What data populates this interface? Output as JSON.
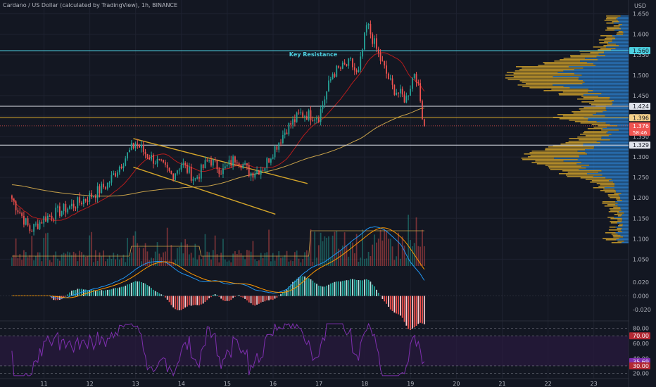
{
  "colors": {
    "background": "#131722",
    "up": "#26a69a",
    "down": "#ef5350",
    "resistance_line": "#4dd0e1",
    "level_line": "#e0e3eb",
    "gold_line": "#d4a52a",
    "ma_fast": "#b71c1c",
    "ma_slow": "#c8a24a",
    "vp_blue": "#2b79c2",
    "vp_gold": "#c79a2b",
    "macd_line": "#2196f3",
    "signal_line": "#ff9800",
    "rsi_line": "#7e2fae",
    "rsi_band": "#2a1a3e",
    "axis_text": "#b2b5be"
  },
  "chart_data": {
    "type": "candlestick",
    "title": "Cardano / US Dollar (calculated by TradingView), 1h, BINANCE",
    "currency": "USD",
    "x_ticks": [
      "11",
      "12",
      "13",
      "14",
      "15",
      "16",
      "17",
      "18",
      "19",
      "20",
      "21",
      "22",
      "23"
    ],
    "price_ticks": [
      "1.650",
      "1.600",
      "1.550",
      "1.500",
      "1.450",
      "1.400",
      "1.350",
      "1.300",
      "1.250",
      "1.200",
      "1.150",
      "1.100",
      "1.050"
    ],
    "price_range": [
      1.03,
      1.67
    ],
    "anchors": [
      [
        "10.3",
        1.198
      ],
      [
        "10.7",
        1.12
      ],
      [
        "11.0",
        1.15
      ],
      [
        "11.4",
        1.17
      ],
      [
        "11.7",
        1.185
      ],
      [
        "12.1",
        1.21
      ],
      [
        "12.4",
        1.235
      ],
      [
        "12.6",
        1.27
      ],
      [
        "13.0",
        1.335
      ],
      [
        "13.2",
        1.31
      ],
      [
        "13.5",
        1.285
      ],
      [
        "13.8",
        1.255
      ],
      [
        "14.0",
        1.285
      ],
      [
        "14.3",
        1.245
      ],
      [
        "14.6",
        1.295
      ],
      [
        "14.9",
        1.265
      ],
      [
        "15.2",
        1.3
      ],
      [
        "15.5",
        1.26
      ],
      [
        "15.8",
        1.275
      ],
      [
        "16.0",
        1.315
      ],
      [
        "16.3",
        1.37
      ],
      [
        "16.6",
        1.405
      ],
      [
        "17.0",
        1.4
      ],
      [
        "17.3",
        1.505
      ],
      [
        "17.7",
        1.53
      ],
      [
        "17.85",
        1.495
      ],
      [
        "18.05",
        1.625
      ],
      [
        "18.3",
        1.55
      ],
      [
        "18.6",
        1.47
      ],
      [
        "18.9",
        1.44
      ],
      [
        "19.1",
        1.515
      ],
      [
        "19.3",
        1.376
      ]
    ],
    "annotations": {
      "key_resistance_label": "Key Resistance",
      "price_levels": [
        {
          "price": 1.56,
          "label": "1.560",
          "kind": "resistance"
        },
        {
          "price": 1.424,
          "label": "1.424",
          "kind": "level"
        },
        {
          "price": 1.396,
          "label": "1.396",
          "kind": "gold"
        },
        {
          "price": 1.329,
          "label": "1.329",
          "kind": "level"
        }
      ],
      "trend_channel": [
        {
          "from": [
            "12.95",
            1.345
          ],
          "to": [
            "16.75",
            1.235
          ]
        },
        {
          "from": [
            "12.95",
            1.275
          ],
          "to": [
            "16.05",
            1.16
          ]
        }
      ]
    },
    "last_price": {
      "value": "1.376",
      "countdown": "58:46"
    },
    "macd": {
      "ticks": [
        "0.020",
        "0.000",
        "-0.020"
      ],
      "range": [
        -0.034,
        0.036
      ]
    },
    "rsi": {
      "ticks": [
        "80.00",
        "60.00",
        "40.00",
        "20.00"
      ],
      "overbought": 70.0,
      "oversold": 30.0,
      "current": 35.69,
      "range": [
        15,
        88
      ],
      "labels": {
        "overbought": "70.00",
        "current": "35.69",
        "oversold": "30.00"
      }
    }
  }
}
